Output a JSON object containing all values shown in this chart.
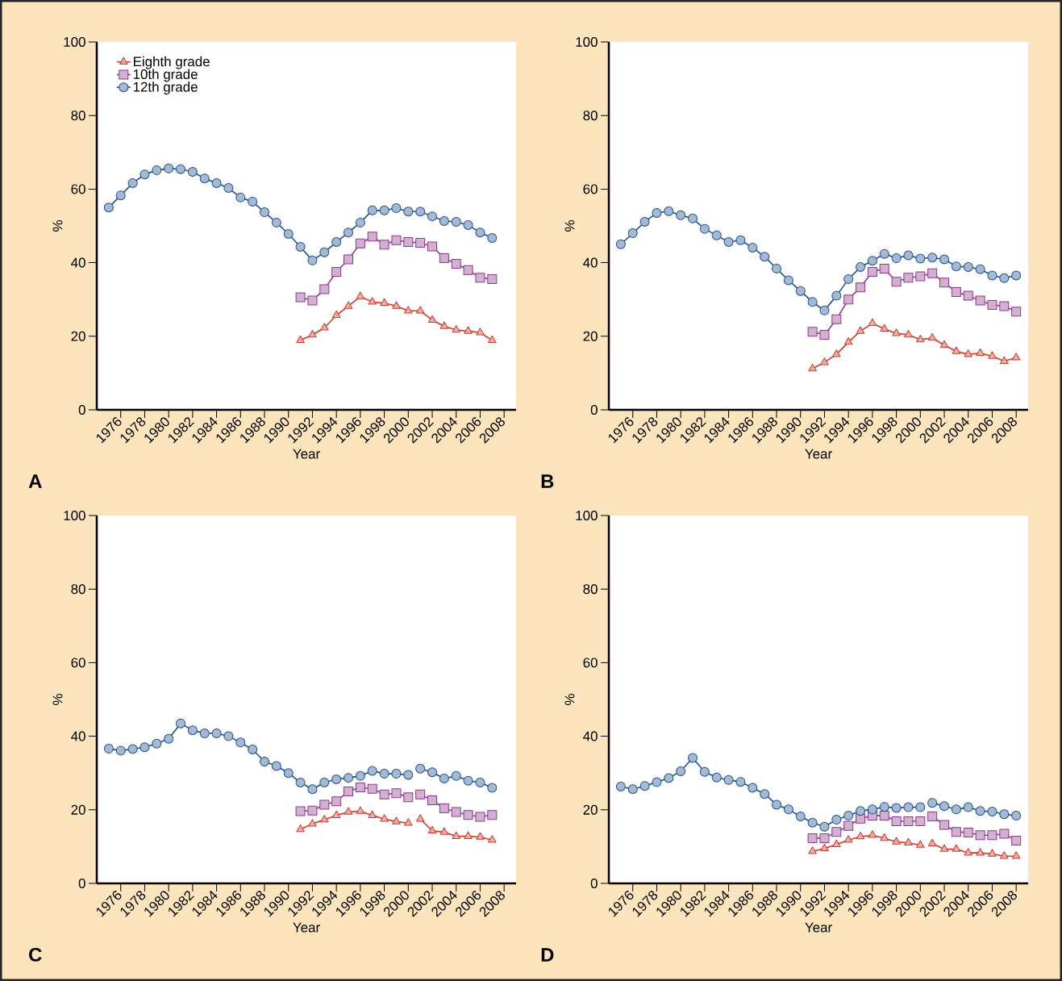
{
  "chart_data": [
    {
      "type": "line",
      "xlabel": "Year",
      "ylabel": "%",
      "annotations": [
        "A"
      ],
      "xlim": [
        1974,
        2009
      ],
      "xticks": [
        1976,
        1978,
        1980,
        1982,
        1984,
        1986,
        1988,
        1990,
        1992,
        1994,
        1996,
        1998,
        2000,
        2002,
        2004,
        2006,
        2008
      ],
      "ylim": [
        0,
        100
      ],
      "yticks": [
        0,
        20,
        40,
        60,
        80,
        100
      ],
      "legend": "top left",
      "series": [
        {
          "name": "Eighth grade",
          "color": "#d03a2b",
          "marker": "triangle",
          "x": [
            1991,
            1992,
            1993,
            1994,
            1995,
            1996,
            1997,
            1998,
            1999,
            2000,
            2001,
            2002,
            2003,
            2004,
            2005,
            2006,
            2007
          ],
          "values": [
            18.9,
            20.4,
            22.3,
            25.7,
            28.2,
            30.8,
            29.3,
            29.0,
            28.2,
            26.9,
            26.9,
            24.4,
            22.7,
            21.7,
            21.4,
            21.0,
            18.9
          ]
        },
        {
          "name": "10th grade",
          "color": "#8e3a8c",
          "marker": "square",
          "x": [
            1991,
            1992,
            1993,
            1994,
            1995,
            1996,
            1997,
            1998,
            1999,
            2000,
            2001,
            2002,
            2003,
            2004,
            2005,
            2006,
            2007
          ],
          "values": [
            30.6,
            29.7,
            32.8,
            37.5,
            40.9,
            45.2,
            47.1,
            44.9,
            46.1,
            45.6,
            45.4,
            44.4,
            41.2,
            39.7,
            38.0,
            35.9,
            35.5
          ]
        },
        {
          "name": "12th grade",
          "color": "#1d4f8f",
          "marker": "circle",
          "x": [
            1975,
            1976,
            1977,
            1978,
            1979,
            1980,
            1981,
            1982,
            1983,
            1984,
            1985,
            1986,
            1987,
            1988,
            1989,
            1990,
            1991,
            1992,
            1993,
            1994,
            1995,
            1996,
            1997,
            1998,
            1999,
            2000,
            2001,
            2002,
            2003,
            2004,
            2005,
            2006,
            2007
          ],
          "values": [
            55.0,
            58.3,
            61.6,
            64.0,
            65.1,
            65.6,
            65.4,
            64.7,
            62.9,
            61.6,
            60.3,
            57.7,
            56.6,
            53.7,
            50.9,
            47.8,
            44.3,
            40.6,
            42.8,
            45.6,
            48.2,
            50.9,
            54.2,
            54.2,
            54.8,
            53.9,
            53.9,
            52.6,
            51.3,
            51.1,
            50.2,
            48.2,
            46.7
          ]
        }
      ]
    },
    {
      "type": "line",
      "xlabel": "Year",
      "ylabel": "%",
      "annotations": [
        "B"
      ],
      "xlim": [
        1974,
        2009
      ],
      "xticks": [
        1976,
        1978,
        1980,
        1982,
        1984,
        1986,
        1988,
        1990,
        1992,
        1994,
        1996,
        1998,
        2000,
        2002,
        2004,
        2006,
        2008
      ],
      "ylim": [
        0,
        100
      ],
      "yticks": [
        0,
        20,
        40,
        60,
        80,
        100
      ],
      "series": [
        {
          "color": "#d03a2b",
          "marker": "triangle",
          "x": [
            1991,
            1992,
            1993,
            1994,
            1995,
            1996,
            1997,
            1998,
            1999,
            2000,
            2001,
            2002,
            2003,
            2004,
            2005,
            2006,
            2007,
            2008
          ],
          "values": [
            11.2,
            12.9,
            15.1,
            18.4,
            21.4,
            23.5,
            22.0,
            20.8,
            20.4,
            19.1,
            19.5,
            17.6,
            15.9,
            15.1,
            15.4,
            14.6,
            13.2,
            14.2
          ]
        },
        {
          "color": "#8e3a8c",
          "marker": "square",
          "x": [
            1991,
            1992,
            1993,
            1994,
            1995,
            1996,
            1997,
            1998,
            1999,
            2000,
            2001,
            2002,
            2003,
            2004,
            2005,
            2006,
            2007,
            2008
          ],
          "values": [
            21.2,
            20.4,
            24.6,
            30.0,
            33.3,
            37.5,
            38.4,
            34.8,
            35.9,
            36.3,
            37.1,
            34.6,
            32.0,
            31.0,
            29.7,
            28.5,
            28.2,
            26.7
          ]
        },
        {
          "color": "#1d4f8f",
          "marker": "circle",
          "x": [
            1975,
            1976,
            1977,
            1978,
            1979,
            1980,
            1981,
            1982,
            1983,
            1984,
            1985,
            1986,
            1987,
            1988,
            1989,
            1990,
            1991,
            1992,
            1993,
            1994,
            1995,
            1996,
            1997,
            1998,
            1999,
            2000,
            2001,
            2002,
            2003,
            2004,
            2005,
            2006,
            2007,
            2008
          ],
          "values": [
            45.0,
            48.0,
            51.1,
            53.5,
            54.0,
            52.9,
            52.0,
            49.2,
            47.4,
            45.6,
            46.1,
            44.1,
            41.6,
            38.4,
            35.2,
            32.3,
            29.3,
            27.0,
            31.0,
            35.5,
            38.8,
            40.5,
            42.4,
            41.2,
            42.0,
            41.1,
            41.4,
            40.9,
            39.0,
            38.8,
            38.2,
            36.5,
            35.8,
            36.5
          ]
        }
      ]
    },
    {
      "type": "line",
      "xlabel": "Year",
      "ylabel": "%",
      "annotations": [
        "C"
      ],
      "xlim": [
        1974,
        2009
      ],
      "xticks": [
        1976,
        1978,
        1980,
        1982,
        1984,
        1986,
        1988,
        1990,
        1992,
        1994,
        1996,
        1998,
        2000,
        2002,
        2004,
        2006,
        2008
      ],
      "ylim": [
        0,
        100
      ],
      "yticks": [
        0,
        20,
        40,
        60,
        80,
        100
      ],
      "series": [
        {
          "color": "#d03a2b",
          "marker": "triangle",
          "x": [
            1991,
            1992,
            1993,
            1994,
            1995,
            1996,
            1997,
            1998,
            1999,
            2000
          ],
          "values": [
            14.7,
            16.2,
            17.3,
            18.5,
            19.4,
            19.6,
            18.5,
            17.5,
            16.8,
            16.4
          ]
        },
        {
          "color": "#d03a2b",
          "marker": "triangle",
          "x": [
            2001,
            2002,
            2003,
            2004,
            2005,
            2006,
            2007
          ],
          "values": [
            17.5,
            14.3,
            13.9,
            12.8,
            12.8,
            12.6,
            11.8
          ]
        },
        {
          "color": "#8e3a8c",
          "marker": "square",
          "x": [
            1991,
            1992,
            1993,
            1994,
            1995,
            1996,
            1997,
            1998,
            1999,
            2000
          ],
          "values": [
            19.6,
            19.8,
            21.4,
            22.3,
            25.0,
            26.1,
            25.7,
            24.2,
            24.5,
            23.4
          ]
        },
        {
          "color": "#8e3a8c",
          "marker": "square",
          "x": [
            2001,
            2002,
            2003,
            2004,
            2005,
            2006,
            2007
          ],
          "values": [
            24.2,
            22.6,
            20.4,
            19.4,
            18.6,
            18.1,
            18.6
          ]
        },
        {
          "color": "#1d4f8f",
          "marker": "circle",
          "x": [
            1975,
            1976,
            1977,
            1978,
            1979,
            1980,
            1981,
            1982,
            1983,
            1984,
            1985,
            1986,
            1987,
            1988,
            1989,
            1990,
            1991,
            1992,
            1993,
            1994,
            1995,
            1996,
            1997,
            1998,
            1999,
            2000
          ],
          "values": [
            36.6,
            36.1,
            36.5,
            37.0,
            38.0,
            39.3,
            43.5,
            41.6,
            40.8,
            40.8,
            40.0,
            38.3,
            36.4,
            33.1,
            31.9,
            30.0,
            27.4,
            25.6,
            27.4,
            28.3,
            28.7,
            29.2,
            30.6,
            29.8,
            29.8,
            29.5
          ]
        },
        {
          "color": "#1d4f8f",
          "marker": "circle",
          "x": [
            2001,
            2002,
            2003,
            2004,
            2005,
            2006,
            2007
          ],
          "values": [
            31.2,
            30.2,
            28.5,
            29.2,
            27.9,
            27.4,
            26.0
          ]
        }
      ]
    },
    {
      "type": "line",
      "xlabel": "Year",
      "ylabel": "%",
      "annotations": [
        "D"
      ],
      "xlim": [
        1974,
        2009
      ],
      "xticks": [
        1976,
        1978,
        1980,
        1982,
        1984,
        1986,
        1988,
        1990,
        1992,
        1994,
        1996,
        1998,
        2000,
        2002,
        2004,
        2006,
        2008
      ],
      "ylim": [
        0,
        100
      ],
      "yticks": [
        0,
        20,
        40,
        60,
        80,
        100
      ],
      "series": [
        {
          "color": "#d03a2b",
          "marker": "triangle",
          "x": [
            1991,
            1992,
            1993,
            1994,
            1995,
            1996,
            1997,
            1998,
            1999,
            2000
          ],
          "values": [
            8.7,
            9.5,
            10.6,
            11.8,
            12.7,
            13.1,
            12.3,
            11.3,
            11.0,
            10.4
          ]
        },
        {
          "color": "#d03a2b",
          "marker": "triangle",
          "x": [
            2001,
            2002,
            2003,
            2004,
            2005,
            2006,
            2007,
            2008
          ],
          "values": [
            10.8,
            9.3,
            9.3,
            8.3,
            8.3,
            8.0,
            7.4,
            7.4
          ]
        },
        {
          "color": "#8e3a8c",
          "marker": "square",
          "x": [
            1991,
            1992,
            1993,
            1994,
            1995,
            1996,
            1997,
            1998,
            1999,
            2000
          ],
          "values": [
            12.3,
            12.3,
            14.0,
            15.6,
            17.6,
            18.4,
            18.4,
            16.9,
            16.9,
            16.9
          ]
        },
        {
          "color": "#8e3a8c",
          "marker": "square",
          "x": [
            2001,
            2002,
            2003,
            2004,
            2005,
            2006,
            2007,
            2008
          ],
          "values": [
            18.2,
            15.9,
            14.0,
            13.8,
            13.1,
            13.1,
            13.5,
            11.6
          ]
        },
        {
          "color": "#1d4f8f",
          "marker": "circle",
          "x": [
            1975,
            1976,
            1977,
            1978,
            1979,
            1980,
            1981,
            1982,
            1983,
            1984,
            1985,
            1986,
            1987,
            1988,
            1989,
            1990,
            1991,
            1992,
            1993,
            1994,
            1995,
            1996,
            1997,
            1998,
            1999,
            2000
          ],
          "values": [
            26.3,
            25.6,
            26.5,
            27.5,
            28.6,
            30.5,
            34.1,
            30.3,
            28.8,
            28.1,
            27.6,
            26.0,
            24.3,
            21.4,
            20.1,
            18.2,
            16.5,
            15.4,
            17.3,
            18.4,
            19.7,
            20.1,
            20.8,
            20.5,
            20.7,
            20.7
          ]
        },
        {
          "color": "#1d4f8f",
          "marker": "circle",
          "x": [
            2001,
            2002,
            2003,
            2004,
            2005,
            2006,
            2007,
            2008
          ],
          "values": [
            21.9,
            21.0,
            20.1,
            20.7,
            19.7,
            19.5,
            18.8,
            18.4
          ]
        }
      ]
    }
  ]
}
